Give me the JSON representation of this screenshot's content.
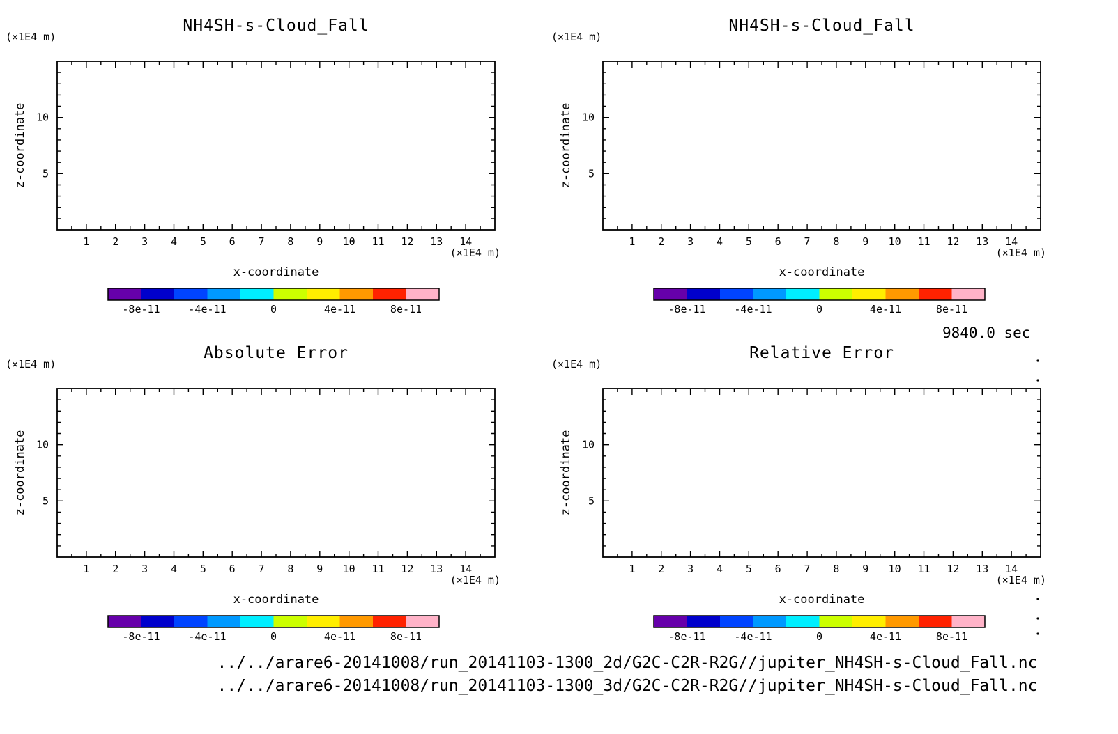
{
  "page": {
    "background": "#ffffff",
    "text_color": "#000000"
  },
  "time_label": "9840.0 sec",
  "footer_lines": [
    "../../arare6-20141008/run_20141103-1300_2d/G2C-C2R-R2G//jupiter_NH4SH-s-Cloud_Fall.nc",
    "../../arare6-20141008/run_20141103-1300_3d/G2C-C2R-R2G//jupiter_NH4SH-s-Cloud_Fall.nc"
  ],
  "axes": {
    "xlabel": "x-coordinate",
    "ylabel": "z-coordinate",
    "x_unit": "(×1E4 m)",
    "y_unit": "(×1E4 m)",
    "xlim": [
      0,
      15
    ],
    "ylim": [
      0,
      15
    ],
    "x_tick_labels": [
      "1",
      "2",
      "3",
      "4",
      "5",
      "6",
      "7",
      "8",
      "9",
      "10",
      "11",
      "12",
      "13",
      "14"
    ],
    "y_tick_labels": [
      "5",
      "10"
    ],
    "grid": "off"
  },
  "colorbar": {
    "tick_labels": [
      "-8e-11",
      "-4e-11",
      "0",
      "4e-11",
      "8e-11"
    ],
    "tick_positions": [
      0.1,
      0.3,
      0.5,
      0.7,
      0.9
    ],
    "range": [
      -1e-10,
      1e-10
    ],
    "colors": [
      "#6600aa",
      "#0000cc",
      "#0044ff",
      "#0099ff",
      "#00eeff",
      "#ccff00",
      "#ffee00",
      "#ff9900",
      "#ff2200",
      "#ffb3c8"
    ]
  },
  "chart_data": [
    {
      "type": "heatmap",
      "title": "NH4SH-s-Cloud_Fall",
      "xlabel": "x-coordinate",
      "ylabel": "z-coordinate",
      "xlim": [
        0,
        15
      ],
      "ylim": [
        0,
        15
      ],
      "values": [],
      "note": "plot area blank - field uniformly zero, no colored cells drawn"
    },
    {
      "type": "heatmap",
      "title": "NH4SH-s-Cloud_Fall",
      "xlabel": "x-coordinate",
      "ylabel": "z-coordinate",
      "xlim": [
        0,
        15
      ],
      "ylim": [
        0,
        15
      ],
      "values": [],
      "note": "plot area blank - field uniformly zero, no colored cells drawn"
    },
    {
      "type": "heatmap",
      "title": "Absolute Error",
      "xlabel": "x-coordinate",
      "ylabel": "z-coordinate",
      "xlim": [
        0,
        15
      ],
      "ylim": [
        0,
        15
      ],
      "values": [],
      "note": "plot area blank - field uniformly zero, no colored cells drawn"
    },
    {
      "type": "heatmap",
      "title": "Relative Error",
      "xlabel": "x-coordinate",
      "ylabel": "z-coordinate",
      "xlim": [
        0,
        15
      ],
      "ylim": [
        0,
        15
      ],
      "values": [],
      "note": "plot area blank - field uniformly zero, no colored cells drawn"
    }
  ]
}
